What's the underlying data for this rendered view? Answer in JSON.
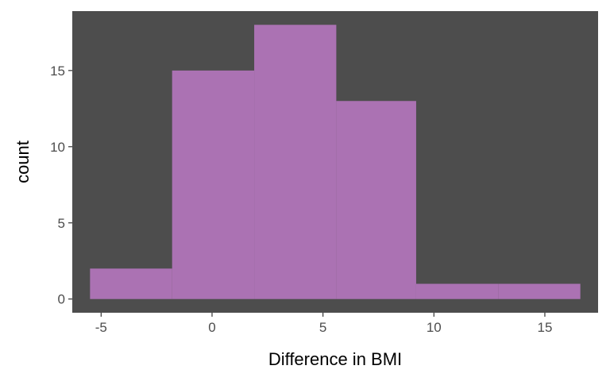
{
  "chart_data": {
    "type": "bar",
    "subtype": "histogram",
    "title": "",
    "xlabel": "Difference in BMI",
    "ylabel": "count",
    "xlim": [
      -6.3,
      17.4
    ],
    "ylim": [
      -0.9,
      18.9
    ],
    "x_ticks": [
      -5,
      0,
      5,
      10,
      15
    ],
    "y_ticks": [
      0,
      5,
      10,
      15
    ],
    "bins": [
      {
        "x0": -5.5,
        "x1": -1.8,
        "count": 2
      },
      {
        "x0": -1.8,
        "x1": 1.9,
        "count": 15
      },
      {
        "x0": 1.9,
        "x1": 5.6,
        "count": 18
      },
      {
        "x0": 5.6,
        "x1": 9.2,
        "count": 13
      },
      {
        "x0": 9.2,
        "x1": 12.9,
        "count": 1
      },
      {
        "x0": 12.9,
        "x1": 16.6,
        "count": 1
      }
    ],
    "grid": false,
    "legend": "none",
    "colors": {
      "bar_fill": "#ab72b3",
      "panel_background": "#4d4d4d",
      "tick_text": "#4d4d4d",
      "title_text": "#000000"
    }
  }
}
